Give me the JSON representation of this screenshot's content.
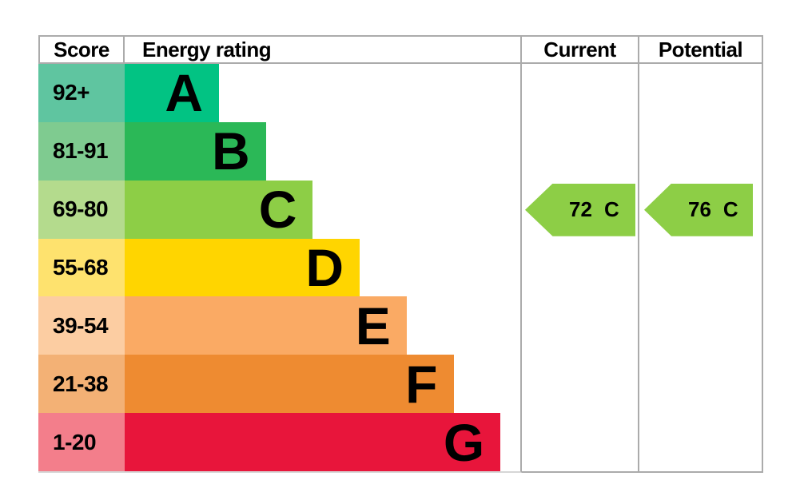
{
  "header": {
    "score": "Score",
    "energy_rating": "Energy rating",
    "current": "Current",
    "potential": "Potential"
  },
  "bands": [
    {
      "score": "92+",
      "letter": "A",
      "bar_color": "#02c383",
      "score_color": "#5fc5a0"
    },
    {
      "score": "81-91",
      "letter": "B",
      "bar_color": "#2bb857",
      "score_color": "#7fcb90"
    },
    {
      "score": "69-80",
      "letter": "C",
      "bar_color": "#8dce46",
      "score_color": "#b4db8d"
    },
    {
      "score": "55-68",
      "letter": "D",
      "bar_color": "#ffd500",
      "score_color": "#fee26e"
    },
    {
      "score": "39-54",
      "letter": "E",
      "bar_color": "#faaa64",
      "score_color": "#fccda2"
    },
    {
      "score": "21-38",
      "letter": "F",
      "bar_color": "#ee8b31",
      "score_color": "#f3b175"
    },
    {
      "score": "1-20",
      "letter": "G",
      "bar_color": "#e8153b",
      "score_color": "#f37e8b"
    }
  ],
  "current": {
    "value": "72",
    "letter": "C",
    "band_letter": "C",
    "arrow_color": "#8dce46"
  },
  "potential": {
    "value": "76",
    "letter": "C",
    "band_letter": "C",
    "arrow_color": "#8dce46"
  },
  "border_color": "#ababab",
  "chart_data": {
    "type": "bar",
    "title": "Energy rating",
    "categories": [
      "A",
      "B",
      "C",
      "D",
      "E",
      "F",
      "G"
    ],
    "score_ranges": [
      "92+",
      "81-91",
      "69-80",
      "55-68",
      "39-54",
      "21-38",
      "1-20"
    ],
    "bar_colors": [
      "#02c383",
      "#2bb857",
      "#8dce46",
      "#ffd500",
      "#faaa64",
      "#ee8b31",
      "#e8153b"
    ],
    "bar_relative_lengths": [
      118,
      177,
      235,
      294,
      353,
      411,
      470
    ],
    "columns": [
      "Score",
      "Energy rating",
      "Current",
      "Potential"
    ],
    "current": {
      "score": 72,
      "rating": "C"
    },
    "potential": {
      "score": 76,
      "rating": "C"
    },
    "legend_position": "none",
    "notes": "EPC-style energy efficiency rating chart; bar length increases from A to G; current and potential shown as left-pointing arrows aligned with band C"
  }
}
